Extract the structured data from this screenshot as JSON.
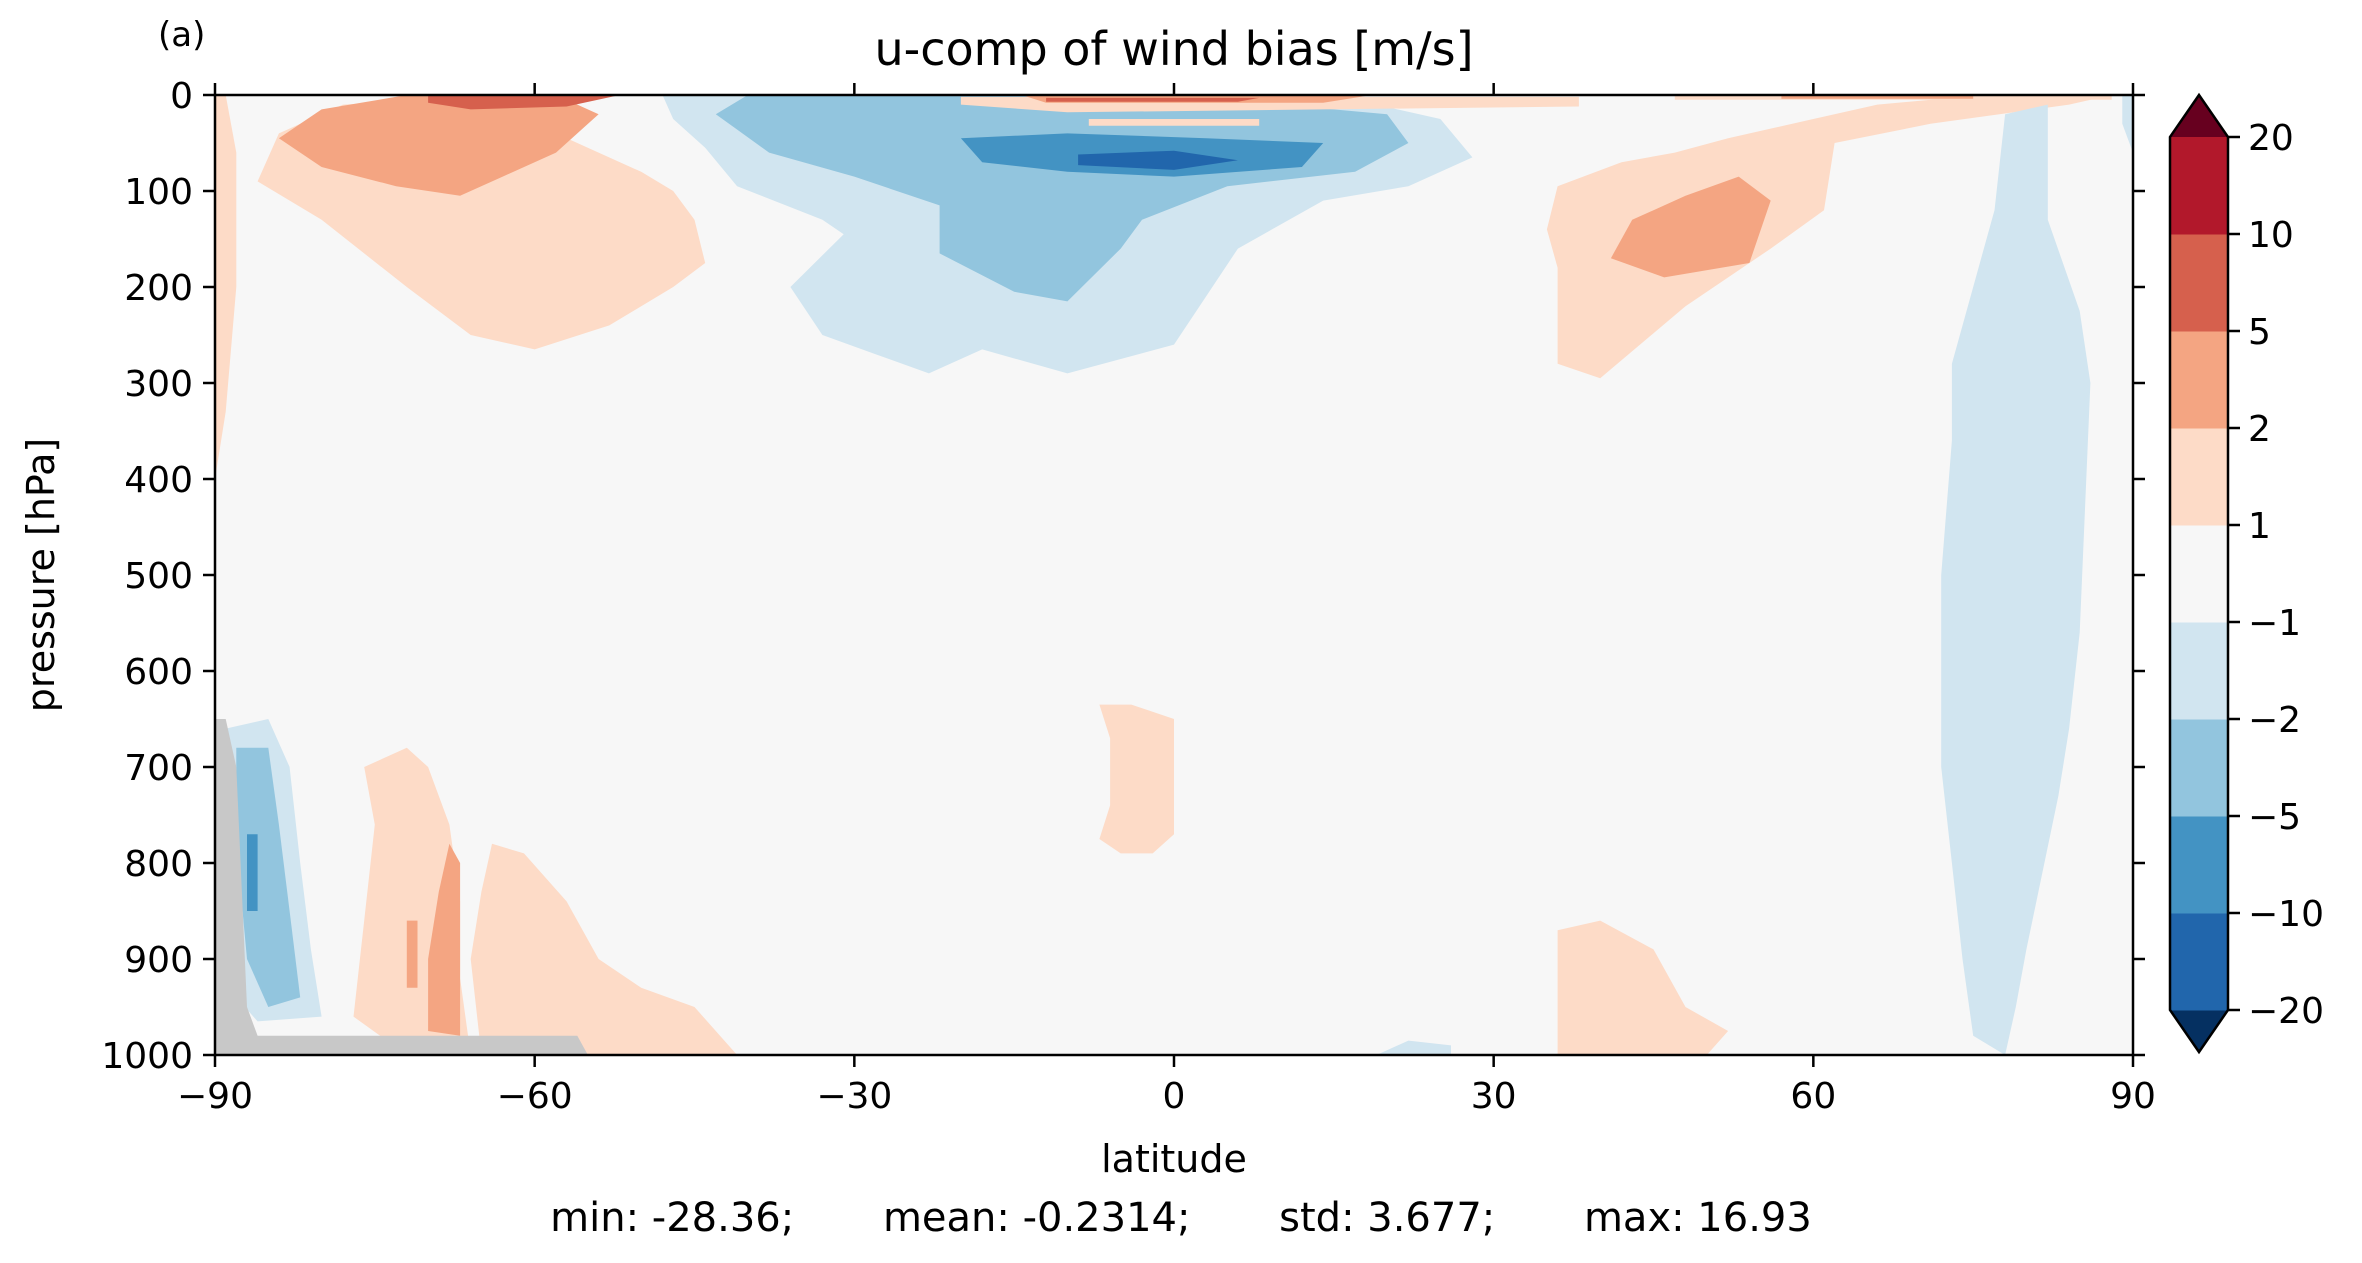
{
  "chart_data": {
    "type": "heatmap",
    "panel_label": "(a)",
    "title": "u-comp of wind bias [m/s]",
    "xlabel": "latitude",
    "ylabel": "pressure [hPa]",
    "xlim": [
      -90,
      90
    ],
    "ylim": [
      1000,
      0
    ],
    "xticks": [
      "−90",
      "−60",
      "−30",
      "0",
      "30",
      "60",
      "90"
    ],
    "yticks": [
      "0",
      "100",
      "200",
      "300",
      "400",
      "500",
      "600",
      "700",
      "800",
      "900",
      "1000"
    ],
    "colorbar": {
      "levels": [
        -20,
        -10,
        -5,
        -2,
        -1,
        1,
        2,
        5,
        10,
        20
      ],
      "tick_labels": [
        "−20",
        "−10",
        "−5",
        "−2",
        "−1",
        "1",
        "2",
        "5",
        "10",
        "20"
      ],
      "colors": [
        "#053061",
        "#2166ac",
        "#4393c3",
        "#92c5de",
        "#d1e5f0",
        "#f7f7f7",
        "#fddbc7",
        "#f4a582",
        "#d6604d",
        "#b2182b",
        "#67001f"
      ],
      "extend": "both"
    },
    "masked_color": "#c8c8c8",
    "regions": [
      {
        "name": "upper-left-weak-positive",
        "level": "1 to 2",
        "points": [
          [
            -70,
            5
          ],
          [
            -64,
            20
          ],
          [
            -58,
            40
          ],
          [
            -54,
            60
          ],
          [
            -50,
            80
          ],
          [
            -47,
            100
          ],
          [
            -45,
            130
          ],
          [
            -44,
            175
          ],
          [
            -47,
            200
          ],
          [
            -53,
            240
          ],
          [
            -60,
            265
          ],
          [
            -66,
            250
          ],
          [
            -72,
            200
          ],
          [
            -80,
            130
          ],
          [
            -86,
            90
          ],
          [
            -84,
            40
          ],
          [
            -78,
            10
          ]
        ]
      },
      {
        "name": "upper-left-moderate-positive",
        "level": "2 to 5",
        "points": [
          [
            -72,
            0
          ],
          [
            -58,
            0
          ],
          [
            -54,
            20
          ],
          [
            -58,
            60
          ],
          [
            -63,
            85
          ],
          [
            -67,
            105
          ],
          [
            -73,
            95
          ],
          [
            -80,
            75
          ],
          [
            -84,
            45
          ],
          [
            -80,
            15
          ]
        ]
      },
      {
        "name": "upper-left-strong-positive",
        "level": "5 to 10",
        "points": [
          [
            -70,
            0
          ],
          [
            -52,
            0
          ],
          [
            -57,
            12
          ],
          [
            -66,
            15
          ],
          [
            -70,
            8
          ]
        ]
      },
      {
        "name": "pole-left-strip-positive",
        "level": "1 to 2",
        "points": [
          [
            -90,
            0
          ],
          [
            -89,
            0
          ],
          [
            -88,
            60
          ],
          [
            -88,
            200
          ],
          [
            -89,
            330
          ],
          [
            -90,
            400
          ]
        ]
      },
      {
        "name": "tropical-upper-weak-negative",
        "level": "-2 to -1",
        "points": [
          [
            -48,
            0
          ],
          [
            15,
            0
          ],
          [
            25,
            25
          ],
          [
            28,
            65
          ],
          [
            22,
            95
          ],
          [
            14,
            110
          ],
          [
            6,
            160
          ],
          [
            0,
            260
          ],
          [
            -10,
            290
          ],
          [
            -18,
            265
          ],
          [
            -23,
            290
          ],
          [
            -28,
            270
          ],
          [
            -33,
            250
          ],
          [
            -36,
            200
          ],
          [
            -31,
            145
          ],
          [
            -33,
            130
          ],
          [
            -41,
            95
          ],
          [
            -44,
            55
          ],
          [
            -47,
            25
          ]
        ]
      },
      {
        "name": "tropical-upper-moderate-negative",
        "level": "-5 to -2",
        "points": [
          [
            -40,
            0
          ],
          [
            0,
            0
          ],
          [
            20,
            20
          ],
          [
            22,
            50
          ],
          [
            17,
            80
          ],
          [
            5,
            95
          ],
          [
            -3,
            130
          ],
          [
            -5,
            160
          ],
          [
            -10,
            215
          ],
          [
            -15,
            205
          ],
          [
            -22,
            165
          ],
          [
            -22,
            115
          ],
          [
            -30,
            85
          ],
          [
            -38,
            60
          ],
          [
            -43,
            20
          ]
        ]
      },
      {
        "name": "tropical-upper-strong-negative",
        "level": "-10 to -5",
        "points": [
          [
            -20,
            45
          ],
          [
            -10,
            40
          ],
          [
            3,
            45
          ],
          [
            14,
            50
          ],
          [
            12,
            75
          ],
          [
            0,
            85
          ],
          [
            -10,
            80
          ],
          [
            -18,
            70
          ]
        ]
      },
      {
        "name": "tropical-upper-very-strong-negative",
        "level": "-20 to -10",
        "points": [
          [
            -9,
            62
          ],
          [
            0,
            58
          ],
          [
            6,
            68
          ],
          [
            0,
            78
          ],
          [
            -9,
            73
          ]
        ]
      },
      {
        "name": "equatorial-jet-top-negative",
        "level": "-5 to -2",
        "points": [
          [
            -35,
            0
          ],
          [
            -12,
            0
          ],
          [
            -12,
            3
          ],
          [
            -35,
            3
          ]
        ]
      },
      {
        "name": "equatorial-upper-positive",
        "level": "1 to 2",
        "points": [
          [
            -20,
            2
          ],
          [
            38,
            2
          ],
          [
            38,
            12
          ],
          [
            -10,
            18
          ],
          [
            -20,
            10
          ]
        ]
      },
      {
        "name": "equatorial-upper-moderate-positive",
        "level": "2 to 5",
        "points": [
          [
            -14,
            1
          ],
          [
            18,
            1
          ],
          [
            14,
            8
          ],
          [
            -12,
            8
          ]
        ]
      },
      {
        "name": "equatorial-upper-strong-positive",
        "level": "5 to 10",
        "points": [
          [
            -12,
            3
          ],
          [
            8,
            3
          ],
          [
            6,
            7
          ],
          [
            -12,
            7
          ]
        ]
      },
      {
        "name": "equatorial-upper-band-positive",
        "level": "1 to 2",
        "points": [
          [
            -8,
            25
          ],
          [
            8,
            25
          ],
          [
            8,
            32
          ],
          [
            -8,
            32
          ]
        ]
      },
      {
        "name": "nh-upper-weak-positive",
        "level": "1 to 2",
        "points": [
          [
            36,
            95
          ],
          [
            42,
            70
          ],
          [
            47,
            60
          ],
          [
            52,
            45
          ],
          [
            60,
            25
          ],
          [
            66,
            10
          ],
          [
            76,
            0
          ],
          [
            88,
            0
          ],
          [
            84,
            10
          ],
          [
            71,
            30
          ],
          [
            62,
            50
          ],
          [
            61,
            120
          ],
          [
            56,
            160
          ],
          [
            48,
            220
          ],
          [
            40,
            295
          ],
          [
            36,
            280
          ],
          [
            36,
            180
          ],
          [
            35,
            140
          ]
        ]
      },
      {
        "name": "nh-upper-moderate-positive",
        "level": "2 to 5",
        "points": [
          [
            43,
            130
          ],
          [
            48,
            105
          ],
          [
            53,
            85
          ],
          [
            56,
            110
          ],
          [
            54,
            175
          ],
          [
            46,
            190
          ],
          [
            41,
            170
          ]
        ]
      },
      {
        "name": "nh-upper-strip-positive",
        "level": "1 to 2",
        "points": [
          [
            47,
            0
          ],
          [
            88,
            0
          ],
          [
            88,
            5
          ],
          [
            47,
            5
          ]
        ]
      },
      {
        "name": "nh-upper-strip-moderate-positive",
        "level": "2 to 5",
        "points": [
          [
            57,
            0
          ],
          [
            75,
            0
          ],
          [
            75,
            4
          ],
          [
            57,
            4
          ]
        ]
      },
      {
        "name": "nh-pole-weak-negative",
        "level": "-2 to -1",
        "points": [
          [
            73,
            280
          ],
          [
            77,
            120
          ],
          [
            78,
            20
          ],
          [
            82,
            10
          ],
          [
            82,
            130
          ],
          [
            85,
            225
          ],
          [
            86,
            300
          ],
          [
            85,
            560
          ],
          [
            84,
            660
          ],
          [
            83,
            730
          ],
          [
            80,
            890
          ],
          [
            79,
            950
          ],
          [
            78,
            1000
          ],
          [
            75,
            980
          ],
          [
            74,
            900
          ],
          [
            73,
            800
          ],
          [
            72,
            700
          ],
          [
            72,
            500
          ],
          [
            73,
            360
          ]
        ]
      },
      {
        "name": "nh-pole-edge-negative",
        "level": "-2 to -1",
        "points": [
          [
            89,
            0
          ],
          [
            90,
            0
          ],
          [
            90,
            60
          ],
          [
            89,
            30
          ]
        ]
      },
      {
        "name": "lowlevel-sh-weak-negative",
        "level": "-2 to -1",
        "points": [
          [
            -89,
            660
          ],
          [
            -85,
            650
          ],
          [
            -83,
            700
          ],
          [
            -82,
            800
          ],
          [
            -81,
            890
          ],
          [
            -80,
            960
          ],
          [
            -86,
            965
          ],
          [
            -88,
            940
          ],
          [
            -89,
            800
          ]
        ]
      },
      {
        "name": "lowlevel-sh-moderate-negative",
        "level": "-5 to -2",
        "points": [
          [
            -88,
            680
          ],
          [
            -85,
            680
          ],
          [
            -84,
            760
          ],
          [
            -83,
            850
          ],
          [
            -82,
            940
          ],
          [
            -85,
            950
          ],
          [
            -87,
            900
          ],
          [
            -88,
            780
          ]
        ]
      },
      {
        "name": "lowlevel-sh-strong-negative",
        "level": "-10 to -5",
        "points": [
          [
            -87,
            770
          ],
          [
            -86,
            770
          ],
          [
            -86,
            850
          ],
          [
            -87,
            850
          ]
        ]
      },
      {
        "name": "lowlevel-sh-weak-positive",
        "level": "1 to 2",
        "points": [
          [
            -76,
            700
          ],
          [
            -72,
            680
          ],
          [
            -70,
            700
          ],
          [
            -68,
            760
          ],
          [
            -67,
            840
          ],
          [
            -67,
            920
          ],
          [
            -66,
            1000
          ],
          [
            -72,
            1000
          ],
          [
            -77,
            960
          ],
          [
            -76,
            860
          ],
          [
            -75,
            760
          ]
        ]
      },
      {
        "name": "lowlevel-sh-moderate-positive",
        "level": "2 to 5",
        "points": [
          [
            -68,
            780
          ],
          [
            -67,
            800
          ],
          [
            -67,
            900
          ],
          [
            -67,
            980
          ],
          [
            -70,
            975
          ],
          [
            -70,
            900
          ],
          [
            -69,
            830
          ]
        ]
      },
      {
        "name": "lowlevel-sh-moderate-positive-2",
        "level": "2 to 5",
        "points": [
          [
            -72,
            860
          ],
          [
            -71,
            860
          ],
          [
            -71,
            930
          ],
          [
            -72,
            930
          ]
        ]
      },
      {
        "name": "lowlevel-midlat-weak-positive",
        "level": "1 to 2",
        "points": [
          [
            -64,
            780
          ],
          [
            -61,
            790
          ],
          [
            -57,
            840
          ],
          [
            -54,
            900
          ],
          [
            -50,
            930
          ],
          [
            -45,
            950
          ],
          [
            -41,
            1000
          ],
          [
            -65,
            1000
          ],
          [
            -66,
            900
          ],
          [
            -65,
            830
          ]
        ]
      },
      {
        "name": "equatorial-lowlevel-positive",
        "level": "1 to 2",
        "points": [
          [
            -7,
            635
          ],
          [
            -4,
            635
          ],
          [
            0,
            650
          ],
          [
            0,
            770
          ],
          [
            -2,
            790
          ],
          [
            -5,
            790
          ],
          [
            -7,
            775
          ],
          [
            -6,
            740
          ],
          [
            -6,
            670
          ]
        ]
      },
      {
        "name": "nh-lowlevel-weak-positive",
        "level": "1 to 2",
        "points": [
          [
            36,
            870
          ],
          [
            40,
            860
          ],
          [
            45,
            890
          ],
          [
            48,
            950
          ],
          [
            52,
            975
          ],
          [
            50,
            1000
          ],
          [
            36,
            1000
          ],
          [
            36,
            940
          ]
        ]
      },
      {
        "name": "nh-lowlevel-negative-blob",
        "level": "-2 to -1",
        "points": [
          [
            19,
            1000
          ],
          [
            22,
            985
          ],
          [
            26,
            990
          ],
          [
            26,
            1000
          ]
        ]
      }
    ],
    "masked_regions": [
      {
        "name": "antarctic-topography",
        "points": [
          [
            -90,
            650
          ],
          [
            -89,
            650
          ],
          [
            -88,
            700
          ],
          [
            -87,
            950
          ],
          [
            -86,
            980
          ],
          [
            -56,
            980
          ],
          [
            -55,
            1000
          ],
          [
            -90,
            1000
          ]
        ]
      }
    ],
    "stats": {
      "min": "min: -28.36;",
      "mean": "mean: -0.2314;",
      "std": "std: 3.677;",
      "max": "max: 16.93"
    }
  }
}
